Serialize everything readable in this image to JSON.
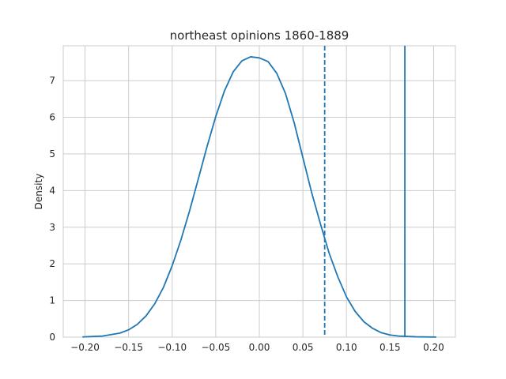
{
  "chart_data": {
    "type": "line",
    "title": "northeast opinions 1860-1889",
    "xlabel": "",
    "ylabel": "Density",
    "xlim": [
      -0.225,
      0.225
    ],
    "ylim": [
      0,
      7.95
    ],
    "x_ticks": [
      -0.2,
      -0.15,
      -0.1,
      -0.05,
      0.0,
      0.05,
      0.1,
      0.15,
      0.2
    ],
    "x_tick_labels": [
      "−0.20",
      "−0.15",
      "−0.10",
      "−0.05",
      "0.00",
      "0.05",
      "0.10",
      "0.15",
      "0.20"
    ],
    "y_ticks": [
      0,
      1,
      2,
      3,
      4,
      5,
      6,
      7
    ],
    "y_tick_labels": [
      "0",
      "1",
      "2",
      "3",
      "4",
      "5",
      "6",
      "7"
    ],
    "grid": true,
    "series": [
      {
        "color": "#1f77b4",
        "x": [
          -0.203,
          -0.18,
          -0.16,
          -0.15,
          -0.14,
          -0.13,
          -0.12,
          -0.11,
          -0.1,
          -0.09,
          -0.08,
          -0.07,
          -0.06,
          -0.05,
          -0.04,
          -0.03,
          -0.02,
          -0.01,
          0.0,
          0.01,
          0.02,
          0.03,
          0.04,
          0.05,
          0.06,
          0.07,
          0.08,
          0.09,
          0.1,
          0.11,
          0.12,
          0.13,
          0.14,
          0.15,
          0.16,
          0.18,
          0.203
        ],
        "y": [
          0.005,
          0.03,
          0.11,
          0.2,
          0.35,
          0.58,
          0.91,
          1.36,
          1.95,
          2.65,
          3.45,
          4.32,
          5.2,
          6.02,
          6.72,
          7.24,
          7.54,
          7.65,
          7.62,
          7.52,
          7.2,
          6.65,
          5.85,
          4.9,
          3.95,
          3.1,
          2.3,
          1.65,
          1.1,
          0.7,
          0.42,
          0.24,
          0.12,
          0.06,
          0.03,
          0.01,
          0.002
        ]
      }
    ],
    "vlines": [
      {
        "x": 0.075,
        "style": "dashed",
        "color": "#1f77b4"
      },
      {
        "x": 0.167,
        "style": "solid",
        "color": "#1f77b4"
      }
    ]
  }
}
